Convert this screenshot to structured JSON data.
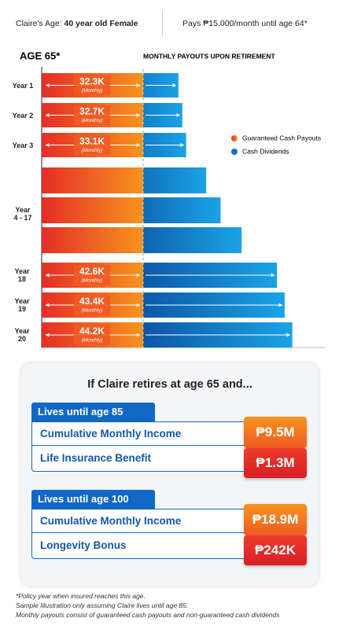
{
  "header": {
    "age_label": "Claire's Age:",
    "age_value": "40 year old Female",
    "payment": "Pays ₱15,000/month until age 64*"
  },
  "chart_data": {
    "type": "bar",
    "orientation": "horizontal",
    "title": "AGE 65*",
    "subtitle": "MONTHLY PAYOUTS UPON RETIREMENT",
    "categories": [
      "Year 1",
      "Year 2",
      "Year 3",
      null,
      null,
      null,
      "Year 18",
      "Year 19",
      "Year 20"
    ],
    "group_label": [
      "Year",
      "4 - 17"
    ],
    "values": [
      32.3,
      32.7,
      33.1,
      35.2,
      36.7,
      38.9,
      42.6,
      43.4,
      44.2
    ],
    "value_labels": [
      "32.3K",
      "32.7K",
      "33.1K",
      null,
      null,
      null,
      "42.6K",
      "43.4K",
      "44.2K"
    ],
    "value_sublabel": "(Monthly)",
    "xlim": [
      18.0,
      47.6
    ],
    "legend": [
      {
        "name": "Guaranteed Cash Payouts",
        "color": "#f26522"
      },
      {
        "name": "Cash Dividends",
        "color": "#1074c4"
      }
    ]
  },
  "summary": {
    "title": "If Claire retires at age 65 and...",
    "scenarios": [
      {
        "label": "Lives until age 85",
        "rows": [
          {
            "name": "Cumulative Monthly Income",
            "value": "₱9.5M"
          },
          {
            "name": "Life Insurance Benefit",
            "value": "₱1.3M"
          }
        ]
      },
      {
        "label": "Lives until age 100",
        "rows": [
          {
            "name": "Cumulative Monthly Income",
            "value": "₱18.9M"
          },
          {
            "name": "Longevity Bonus",
            "value": "₱242K"
          }
        ]
      }
    ]
  },
  "footnotes": [
    "*Policy year when insured reaches this age.",
    "Sample Illustration only assuming Claire lives until age 85.",
    "Monthly payouts consist of guaranteed cash payouts and non-guaranteed cash dividends"
  ]
}
